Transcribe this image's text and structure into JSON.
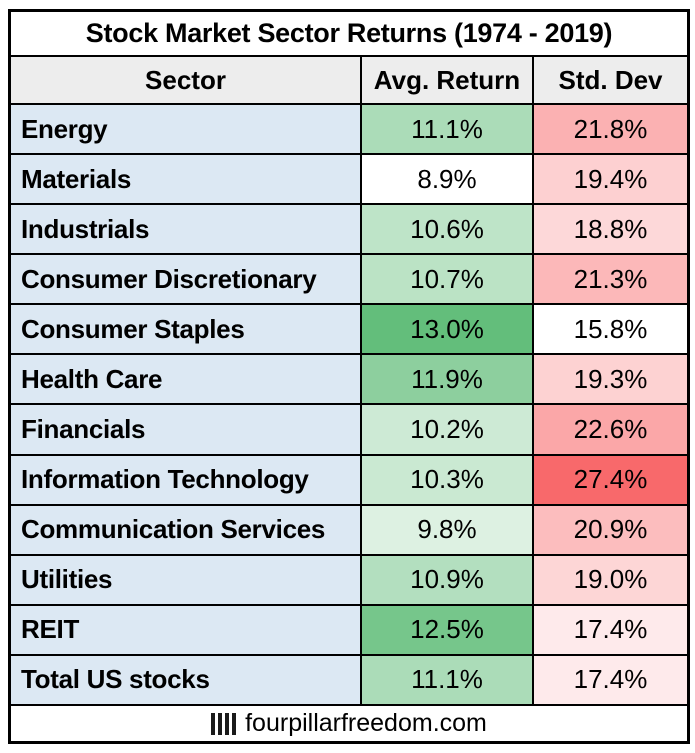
{
  "title": "Stock Market Sector Returns (1974 - 2019)",
  "columns": {
    "sector": "Sector",
    "avg_return": "Avg. Return",
    "std_dev": "Std. Dev"
  },
  "colors": {
    "header_bg": "#EDEDED",
    "sector_bg": "#DCE8F3",
    "title_bg": "#FFFFFF",
    "border": "#000000",
    "green_scale_max": "#63BE7B",
    "red_scale_max": "#F8696B",
    "scale_min": "#FFFFFF"
  },
  "rows": [
    {
      "sector": "Energy",
      "avg_return": "11.1%",
      "avg_bg": "#ABDCB8",
      "std_dev": "21.8%",
      "std_bg": "#FBB1B2"
    },
    {
      "sector": "Materials",
      "avg_return": "8.9%",
      "avg_bg": "#FFFFFF",
      "std_dev": "19.4%",
      "std_bg": "#FDD0D1"
    },
    {
      "sector": "Industrials",
      "avg_return": "10.6%",
      "avg_bg": "#BEE4C8",
      "std_dev": "18.8%",
      "std_bg": "#FDD8D9"
    },
    {
      "sector": "Consumer Discretionary",
      "avg_return": "10.7%",
      "avg_bg": "#BBE3C5",
      "std_dev": "21.3%",
      "std_bg": "#FCB8B9"
    },
    {
      "sector": "Consumer Staples",
      "avg_return": "13.0%",
      "avg_bg": "#63BE7B",
      "std_dev": "15.8%",
      "std_bg": "#FFFFFF"
    },
    {
      "sector": "Health Care",
      "avg_return": "11.9%",
      "avg_bg": "#8DCF9E",
      "std_dev": "19.3%",
      "std_bg": "#FDD2D2"
    },
    {
      "sector": "Financials",
      "avg_return": "10.2%",
      "avg_bg": "#CDEAD5",
      "std_dev": "22.6%",
      "std_bg": "#FBA7A8"
    },
    {
      "sector": "Information Technology",
      "avg_return": "10.3%",
      "avg_bg": "#CAE9D2",
      "std_dev": "27.4%",
      "std_bg": "#F8696B"
    },
    {
      "sector": "Communication Services",
      "avg_return": "9.8%",
      "avg_bg": "#DDF1E2",
      "std_dev": "20.9%",
      "std_bg": "#FCBDBE"
    },
    {
      "sector": "Utilities",
      "avg_return": "10.9%",
      "avg_bg": "#B3DFBF",
      "std_dev": "19.0%",
      "std_bg": "#FDD6D6"
    },
    {
      "sector": "REIT",
      "avg_return": "12.5%",
      "avg_bg": "#76C68B",
      "std_dev": "17.4%",
      "std_bg": "#FEEAEB"
    },
    {
      "sector": "Total US stocks",
      "avg_return": "11.1%",
      "avg_bg": "#ABDCB8",
      "std_dev": "17.4%",
      "std_bg": "#FEEAEB"
    }
  ],
  "footer": {
    "logo": "four-pillars-logo",
    "text": "fourpillarfreedom.com"
  },
  "chart_data": {
    "type": "table",
    "title": "Stock Market Sector Returns (1974 - 2019)",
    "columns": [
      "Sector",
      "Avg. Return",
      "Std. Dev"
    ],
    "categories": [
      "Energy",
      "Materials",
      "Industrials",
      "Consumer Discretionary",
      "Consumer Staples",
      "Health Care",
      "Financials",
      "Information Technology",
      "Communication Services",
      "Utilities",
      "REIT",
      "Total US stocks"
    ],
    "series": [
      {
        "name": "Avg. Return",
        "unit": "%",
        "values": [
          11.1,
          8.9,
          10.6,
          10.7,
          13.0,
          11.9,
          10.2,
          10.3,
          9.8,
          10.9,
          12.5,
          11.1
        ]
      },
      {
        "name": "Std. Dev",
        "unit": "%",
        "values": [
          21.8,
          19.4,
          18.8,
          21.3,
          15.8,
          19.3,
          22.6,
          27.4,
          20.9,
          19.0,
          17.4,
          17.4
        ]
      }
    ],
    "formatting": "two-color scales: Avg. Return white(min 8.9)->green #63BE7B(max 13.0); Std. Dev white(min 15.8)->red #F8696B(max 27.4)"
  }
}
